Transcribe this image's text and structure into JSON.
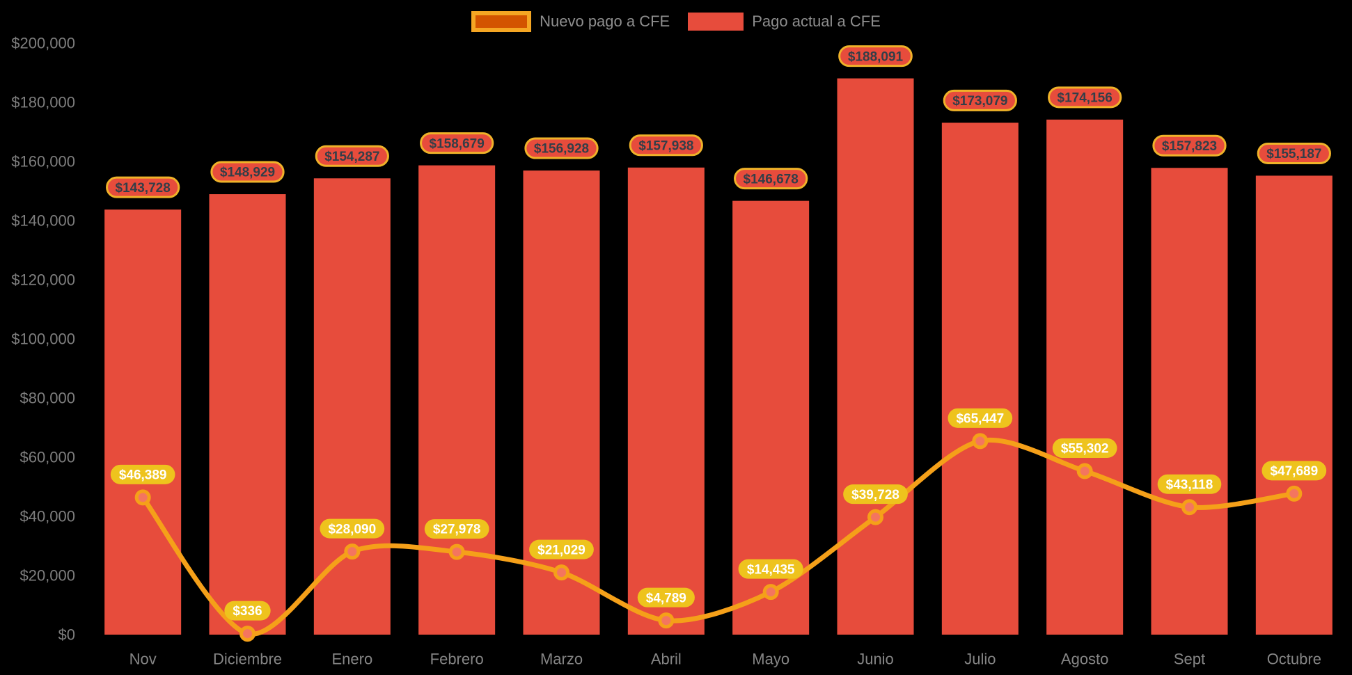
{
  "chart_data": {
    "type": "bar+line",
    "categories": [
      "Nov",
      "Diciembre",
      "Enero",
      "Febrero",
      "Marzo",
      "Abril",
      "Mayo",
      "Junio",
      "Julio",
      "Agosto",
      "Sept",
      "Octubre"
    ],
    "series": [
      {
        "name": "Nuevo pago a CFE",
        "type": "line",
        "color": "#F5A019",
        "point_fill": "#F4755F",
        "label_bg": "#EEC31D",
        "label_color": "#FFFFFF",
        "values": [
          46389,
          336,
          28090,
          27978,
          21029,
          4789,
          14435,
          39728,
          65447,
          55302,
          43118,
          47689
        ],
        "labels": [
          "$46,389",
          "$336",
          "$28,090",
          "$27,978",
          "$21,029",
          "$4,789",
          "$14,435",
          "$39,728",
          "$65,447",
          "$55,302",
          "$43,118",
          "$47,689"
        ]
      },
      {
        "name": "Pago actual a CFE",
        "type": "bar",
        "color": "#E74C3C",
        "label_bg": "#E74C3C",
        "label_border": "#EFB229",
        "label_color": "#333E48",
        "values": [
          143728,
          148929,
          154287,
          158679,
          156928,
          157938,
          146678,
          188091,
          173079,
          174156,
          157823,
          155187
        ],
        "labels": [
          "$143,728",
          "$148,929",
          "$154,287",
          "$158,679",
          "$156,928",
          "$157,938",
          "$146,678",
          "$188,091",
          "$173,079",
          "$174,156",
          "$157,823",
          "$155,187"
        ]
      }
    ],
    "ylim": [
      0,
      200000
    ],
    "ytick_values": [
      0,
      20000,
      40000,
      60000,
      80000,
      100000,
      120000,
      140000,
      160000,
      180000,
      200000
    ],
    "ytick_labels": [
      "$0",
      "$20,000",
      "$40,000",
      "$60,000",
      "$80,000",
      "$100,000",
      "$120,000",
      "$140,000",
      "$160,000",
      "$180,000",
      "$200,000"
    ],
    "grid": false,
    "legend_position": "top-center",
    "background": "#000000"
  },
  "legend": {
    "items": [
      {
        "label": "Nuevo pago a CFE",
        "swatch_fill": "#D35400",
        "swatch_border": "#F5A623"
      },
      {
        "label": "Pago actual a CFE",
        "swatch_fill": "#E74C3C",
        "swatch_border": "#E74C3C"
      }
    ]
  },
  "colors": {
    "background": "#000000",
    "bar": "#E74C3C",
    "line": "#F5A019",
    "gold_label": "#EEC31D",
    "axis_text": "#7E7E7E",
    "legend_text": "#8E8E8E"
  }
}
